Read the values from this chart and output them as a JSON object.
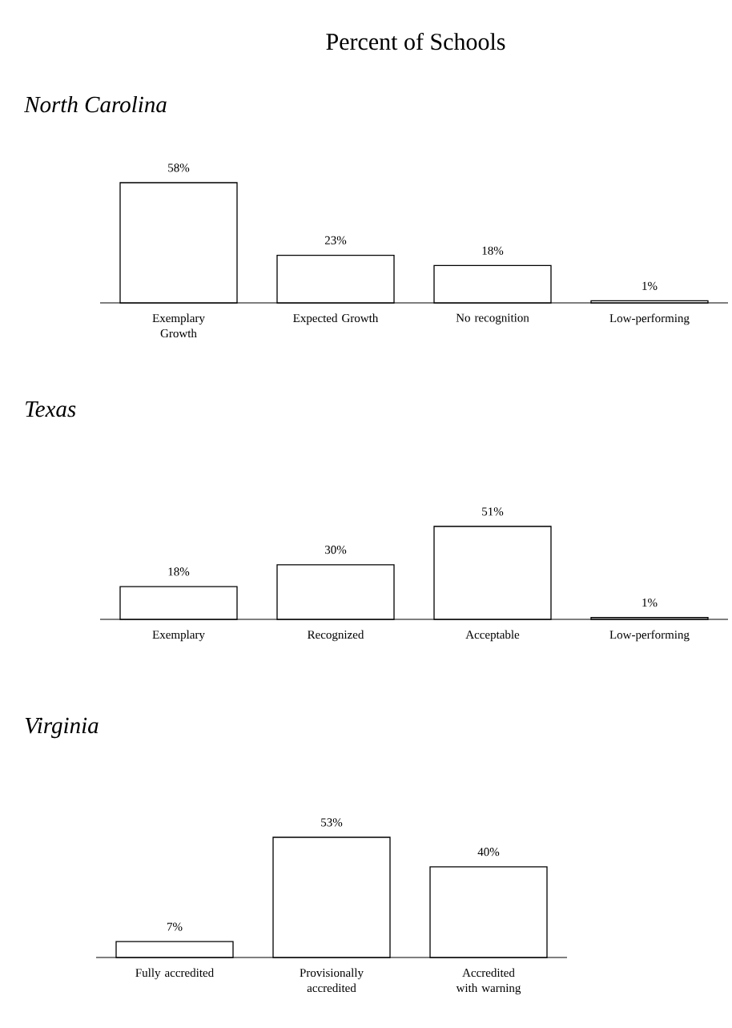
{
  "chart_data": [
    {
      "type": "bar",
      "title": "Percent of Schools",
      "subtitle": "North Carolina",
      "categories": [
        "Exemplary Growth",
        "Expected Growth",
        "No recognition",
        "Low-performing"
      ],
      "values": [
        58,
        23,
        18,
        1
      ],
      "value_labels": [
        "58%",
        "23%",
        "18%",
        "1%"
      ],
      "color": "#ffffff"
    },
    {
      "type": "bar",
      "subtitle": "Texas",
      "categories": [
        "Exemplary",
        "Recognized",
        "Acceptable",
        "Low-performing"
      ],
      "values": [
        18,
        30,
        51,
        1
      ],
      "value_labels": [
        "18%",
        "30%",
        "51%",
        "1%"
      ],
      "color": "#ffffff"
    },
    {
      "type": "bar",
      "subtitle": "Virginia",
      "categories": [
        "Fully accredited",
        "Provisionally accredited",
        "Accredited with warning"
      ],
      "values": [
        7,
        53,
        40
      ],
      "value_labels": [
        "7%",
        "53%",
        "40%"
      ],
      "color": "#ffffff"
    }
  ]
}
